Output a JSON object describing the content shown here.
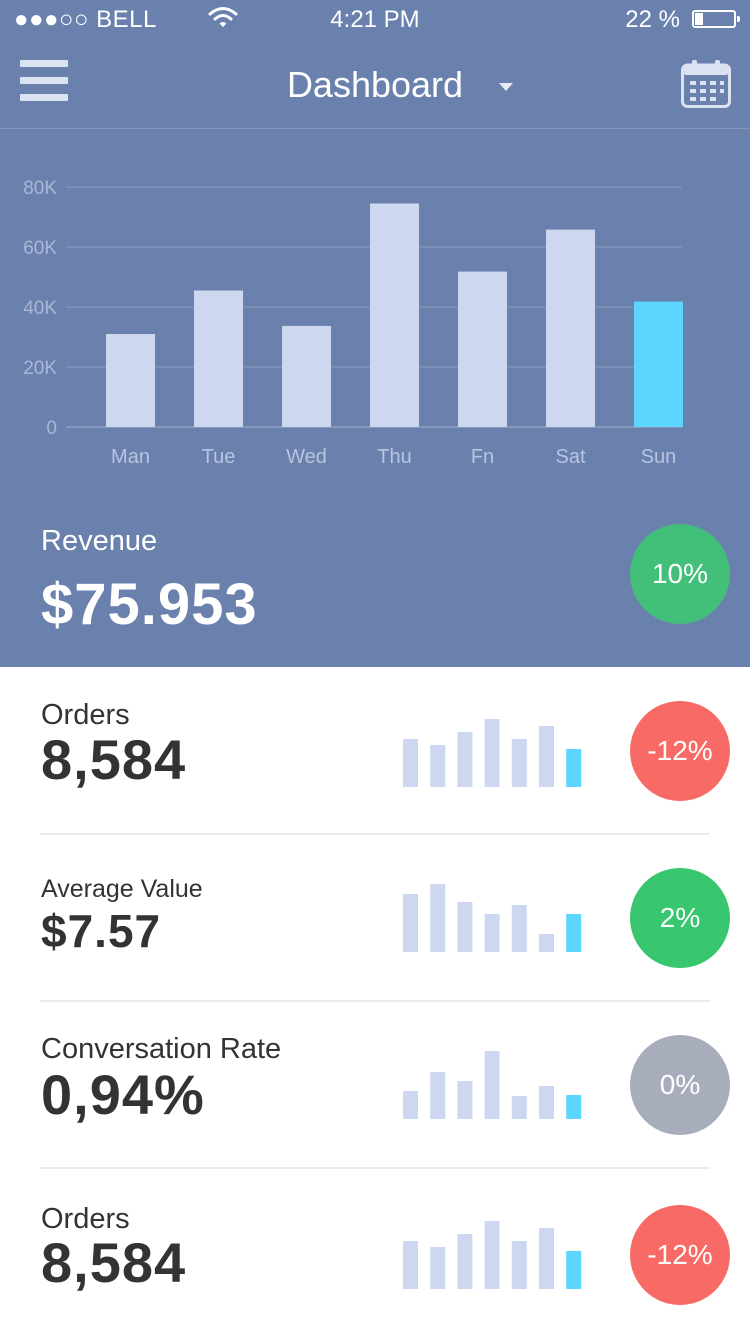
{
  "status_bar": {
    "carrier": "●●●○○ BELL",
    "time": "4:21 PM",
    "battery": "22 %",
    "battery_level": 0.22
  },
  "nav": {
    "title": "Dashboard",
    "menu_icon": "hamburger-menu-icon",
    "calendar_icon": "calendar-icon",
    "dropdown_icon": "caret-down-icon"
  },
  "chart_data": {
    "type": "bar",
    "categories": [
      "Man",
      "Tue",
      "Wed",
      "Thu",
      "Fn",
      "Sat",
      "Sun"
    ],
    "values": [
      31000,
      45500,
      33700,
      74500,
      51800,
      65800,
      41800
    ],
    "y_ticks": [
      "0",
      "20K",
      "40K",
      "60K",
      "80K"
    ],
    "ylim": [
      0,
      80000
    ],
    "highlight_index": 6,
    "colors": {
      "bar": "#cdd7f0",
      "highlight": "#5cd6ff"
    },
    "grid": true
  },
  "revenue": {
    "label": "Revenue",
    "value": "$75.953",
    "change": "10%",
    "change_color": "#42bf78"
  },
  "metrics": [
    {
      "label": "Orders",
      "value": "8,584",
      "change": "-12%",
      "color": "#f76a66",
      "spark": [
        48,
        42,
        55,
        68,
        48,
        61,
        38
      ]
    },
    {
      "label": "Average Value",
      "value": "$7.57",
      "change": "2%",
      "color": "#38c66f",
      "spark": [
        58,
        68,
        50,
        38,
        47,
        18,
        38
      ]
    },
    {
      "label": "Conversation Rate",
      "value": "0,94%",
      "change": "0%",
      "color": "#a8adbb",
      "spark": [
        28,
        47,
        38,
        68,
        23,
        33,
        24
      ]
    },
    {
      "label": "Orders",
      "value": "8,584",
      "change": "-12%",
      "color": "#f76a66",
      "spark": [
        48,
        42,
        55,
        68,
        48,
        61,
        38
      ]
    }
  ]
}
